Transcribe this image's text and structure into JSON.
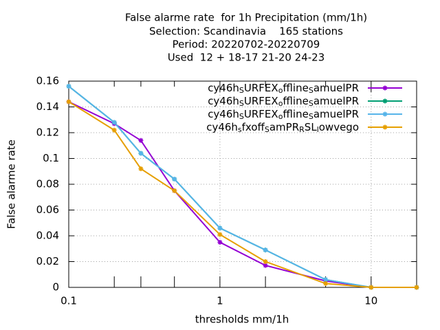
{
  "chart_data": {
    "type": "line",
    "title": [
      "False alarme rate  for 1h Precipitation (mm/1h)",
      "Selection: Scandinavia    165 stations",
      "Period: 20220702-20220709",
      "Used  12 + 18-17 21-20 24-23"
    ],
    "xlabel": "thresholds mm/1h",
    "ylabel": "False alarme rate",
    "x": [
      0.1,
      0.2,
      0.3,
      0.5,
      1,
      2,
      5,
      10,
      20
    ],
    "series": [
      {
        "name": "cy46h_SURFEX_offline_SamuelPR",
        "color": "#9400d3",
        "values": [
          0.144,
          0.127,
          0.114,
          0.075,
          0.035,
          0.017,
          0.005,
          0.0,
          0.0
        ]
      },
      {
        "name": "cy46h_SURFEX_offline_SamuelPR",
        "color": "#009e73",
        "values": [
          0.156,
          0.128,
          0.104,
          0.084,
          0.046,
          0.029,
          0.006,
          0.0,
          0.0
        ]
      },
      {
        "name": "cy46h_SURFEX_offline_SamuelPR",
        "color": "#56b4e9",
        "values": [
          0.156,
          0.128,
          0.104,
          0.084,
          0.046,
          0.029,
          0.006,
          0.0,
          0.0
        ]
      },
      {
        "name": "cy46h_sfxoff_SamPR_RSL_lowvego",
        "color": "#e69f00",
        "values": [
          0.144,
          0.122,
          0.092,
          0.075,
          0.041,
          0.02,
          0.003,
          0.0,
          0.0
        ]
      }
    ],
    "xlog": true,
    "xlim": [
      0.1,
      20
    ],
    "xticks": [
      0.1,
      1,
      10
    ],
    "minor_xticks": [
      0.2,
      0.3,
      0.5,
      2,
      5,
      20
    ],
    "ylim": [
      0,
      0.16
    ],
    "yticks": [
      0,
      0.02,
      0.04,
      0.06,
      0.08,
      0.1,
      0.12,
      0.14,
      0.16
    ],
    "grid": true,
    "legend": "top-right"
  }
}
